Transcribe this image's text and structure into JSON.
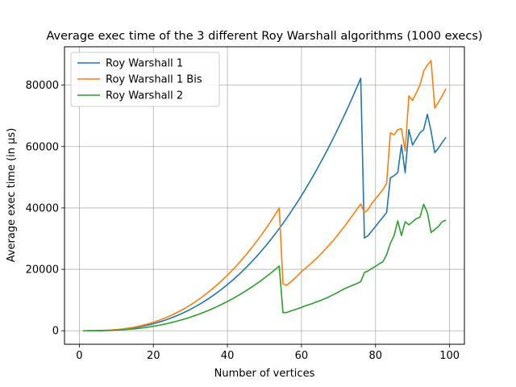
{
  "chart_data": {
    "type": "line",
    "title": "Average exec time of the 3 different Roy Warshall algorithms (1000 execs)",
    "xlabel": "Number of vertices",
    "ylabel": "Average exec time (in µs)",
    "xlim": [
      -4.0,
      104.0
    ],
    "ylim": [
      -4400,
      92500
    ],
    "xticks": [
      0,
      20,
      40,
      60,
      80,
      100
    ],
    "xtick_labels": [
      "0",
      "20",
      "40",
      "60",
      "80",
      "100"
    ],
    "yticks": [
      0,
      20000,
      40000,
      60000,
      80000
    ],
    "ytick_labels": [
      "0",
      "20000",
      "40000",
      "60000",
      "80000"
    ],
    "grid": true,
    "legend_position": "top-left",
    "x": [
      1,
      2,
      3,
      4,
      5,
      6,
      7,
      8,
      9,
      10,
      11,
      12,
      13,
      14,
      15,
      16,
      17,
      18,
      19,
      20,
      21,
      22,
      23,
      24,
      25,
      26,
      27,
      28,
      29,
      30,
      31,
      32,
      33,
      34,
      35,
      36,
      37,
      38,
      39,
      40,
      41,
      42,
      43,
      44,
      45,
      46,
      47,
      48,
      49,
      50,
      51,
      52,
      53,
      54,
      55,
      56,
      57,
      58,
      59,
      60,
      61,
      62,
      63,
      64,
      65,
      66,
      67,
      68,
      69,
      70,
      71,
      72,
      73,
      74,
      75,
      76,
      77,
      78,
      79,
      80,
      81,
      82,
      83,
      84,
      85,
      86,
      87,
      88,
      89,
      90,
      91,
      92,
      93,
      94,
      95,
      96,
      97,
      98,
      99
    ],
    "series": [
      {
        "name": "Roy Warshall 1",
        "color": "#1f77b4",
        "values": [
          0,
          2,
          8,
          20,
          40,
          70,
          110,
          160,
          230,
          310,
          410,
          530,
          670,
          830,
          1010,
          1220,
          1450,
          1710,
          1990,
          2300,
          2640,
          3000,
          3390,
          3810,
          4260,
          4740,
          5250,
          5790,
          6370,
          6980,
          7630,
          8310,
          9020,
          9770,
          10550,
          11370,
          12230,
          13130,
          14060,
          15040,
          16050,
          17110,
          18210,
          19350,
          20540,
          21770,
          23050,
          24370,
          25740,
          27150,
          28620,
          30130,
          31690,
          33300,
          34960,
          36670,
          38430,
          40250,
          42110,
          44030,
          46000,
          48020,
          50100,
          52230,
          54420,
          56660,
          58960,
          61310,
          63720,
          66190,
          68710,
          71300,
          73940,
          76650,
          79410,
          82230,
          30200,
          31000,
          32500,
          34000,
          35500,
          37000,
          38500,
          49800,
          50500,
          51500,
          60500,
          51500,
          65500,
          60500,
          62500,
          64500,
          65500,
          70500,
          65000,
          58000,
          59500,
          61300,
          63000
        ]
      },
      {
        "name": "Roy Warshall 1 Bis",
        "color": "#ff7f0e",
        "values": [
          0,
          3,
          10,
          24,
          48,
          85,
          135,
          195,
          280,
          375,
          495,
          640,
          810,
          1000,
          1220,
          1470,
          1750,
          2060,
          2400,
          2770,
          3180,
          3620,
          4090,
          4590,
          5130,
          5710,
          6330,
          6980,
          7670,
          8410,
          9190,
          10000,
          10860,
          11770,
          12720,
          13710,
          14740,
          15820,
          16940,
          18110,
          19330,
          20600,
          21920,
          23290,
          24710,
          26190,
          27720,
          29300,
          30940,
          32630,
          34380,
          36190,
          38060,
          39990,
          15300,
          14800,
          15800,
          16900,
          18000,
          19300,
          20300,
          21300,
          22400,
          23500,
          24700,
          26000,
          27300,
          28600,
          30000,
          31500,
          33100,
          34600,
          36300,
          37900,
          39600,
          41300,
          38500,
          39500,
          41500,
          43000,
          44500,
          46000,
          48000,
          64500,
          63800,
          65500,
          65800,
          58500,
          76500,
          75000,
          77500,
          80000,
          84500,
          86500,
          88000,
          72500,
          74500,
          76500,
          78800
        ]
      },
      {
        "name": "Roy Warshall 2",
        "color": "#2ca02c",
        "values": [
          0,
          1,
          5,
          12,
          25,
          44,
          70,
          102,
          146,
          196,
          260,
          336,
          426,
          528,
          642,
          775,
          920,
          1085,
          1262,
          1460,
          1675,
          1905,
          2155,
          2420,
          2705,
          3010,
          3335,
          3675,
          4045,
          4430,
          4840,
          5275,
          5725,
          6200,
          6695,
          7215,
          7760,
          8330,
          8920,
          9540,
          10185,
          10855,
          11550,
          12270,
          13020,
          13790,
          14595,
          15430,
          16290,
          17190,
          18120,
          19070,
          20060,
          21080,
          5900,
          5950,
          6400,
          6800,
          7200,
          7600,
          8100,
          8500,
          8900,
          9400,
          9800,
          10300,
          10800,
          11400,
          12000,
          12600,
          13300,
          13900,
          14400,
          14900,
          15400,
          16000,
          19000,
          19500,
          20300,
          21000,
          21800,
          22500,
          24800,
          28500,
          31000,
          35800,
          31000,
          35500,
          34500,
          35500,
          36500,
          37000,
          41200,
          38500,
          32000,
          33000,
          34000,
          35500,
          36000
        ]
      }
    ]
  }
}
